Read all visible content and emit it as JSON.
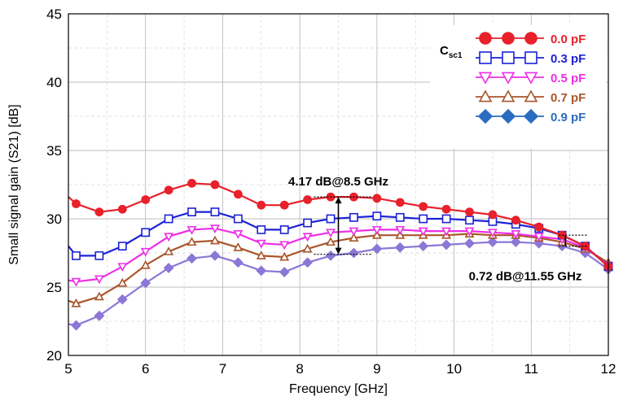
{
  "chart_data": {
    "type": "line",
    "xlabel": "Frequency [GHz]",
    "ylabel": "Small signal gain (S21) [dB]",
    "xlim": [
      5,
      12
    ],
    "ylim": [
      20,
      45
    ],
    "x_ticks": [
      "5",
      "6",
      "7",
      "8",
      "9",
      "10",
      "11",
      "12"
    ],
    "y_ticks": [
      "20",
      "25",
      "30",
      "35",
      "40",
      "45"
    ],
    "grid": true,
    "legend": {
      "title_main": "C",
      "title_sub": "sc1",
      "placement": "top-right"
    },
    "x": [
      5.0,
      5.1,
      5.4,
      5.7,
      6.0,
      6.3,
      6.6,
      6.9,
      7.2,
      7.5,
      7.8,
      8.1,
      8.4,
      8.7,
      9.0,
      9.3,
      9.6,
      9.9,
      10.2,
      10.5,
      10.8,
      11.1,
      11.4,
      11.7,
      12.0
    ],
    "series": [
      {
        "name": "0.0 pF",
        "color": "#e8212b",
        "marker": "circle",
        "filled": true,
        "values": [
          31.6,
          31.1,
          30.5,
          30.7,
          31.4,
          32.1,
          32.6,
          32.5,
          31.8,
          31.0,
          31.0,
          31.4,
          31.6,
          31.6,
          31.5,
          31.2,
          30.9,
          30.7,
          30.5,
          30.3,
          29.9,
          29.4,
          28.8,
          28.0,
          26.5
        ]
      },
      {
        "name": "0.3 pF",
        "color": "#1c22d6",
        "marker": "square",
        "filled": false,
        "values": [
          28.0,
          27.3,
          27.3,
          28.0,
          29.0,
          30.0,
          30.5,
          30.5,
          30.0,
          29.2,
          29.2,
          29.7,
          30.0,
          30.1,
          30.2,
          30.1,
          30.0,
          30.0,
          29.9,
          29.8,
          29.6,
          29.3,
          28.8,
          28.0,
          26.5
        ]
      },
      {
        "name": "0.5 pF",
        "color": "#ee2ee6",
        "marker": "triangle-down",
        "filled": false,
        "values": [
          25.5,
          25.4,
          25.6,
          26.5,
          27.6,
          28.7,
          29.2,
          29.3,
          28.9,
          28.2,
          28.1,
          28.7,
          29.0,
          29.1,
          29.2,
          29.2,
          29.1,
          29.1,
          29.1,
          29.0,
          28.9,
          28.7,
          28.5,
          27.9,
          26.6
        ]
      },
      {
        "name": "0.7 pF",
        "color": "#a9562b",
        "marker": "triangle-up",
        "filled": false,
        "values": [
          24.0,
          23.8,
          24.3,
          25.3,
          26.6,
          27.6,
          28.3,
          28.4,
          27.9,
          27.3,
          27.2,
          27.8,
          28.3,
          28.6,
          28.8,
          28.8,
          28.8,
          28.8,
          28.9,
          28.8,
          28.8,
          28.6,
          28.3,
          27.8,
          26.8
        ]
      },
      {
        "name": "0.9 pF",
        "color": "#8b77d6",
        "marker": "diamond",
        "filled": true,
        "legend_color": "#2b6cc0",
        "values": [
          22.3,
          22.2,
          22.9,
          24.1,
          25.3,
          26.4,
          27.1,
          27.3,
          26.8,
          26.2,
          26.1,
          26.8,
          27.3,
          27.5,
          27.8,
          27.9,
          28.0,
          28.1,
          28.2,
          28.3,
          28.3,
          28.2,
          28.0,
          27.5,
          26.3
        ]
      }
    ],
    "annotations": [
      {
        "text": "4.17 dB@8.5 GHz",
        "x": 8.5,
        "y_from": 27.4,
        "y_to": 31.6
      },
      {
        "text": "0.72 dB@11.55 GHz",
        "x": 11.55,
        "y_from": 28.0,
        "y_to": 28.8
      }
    ]
  }
}
